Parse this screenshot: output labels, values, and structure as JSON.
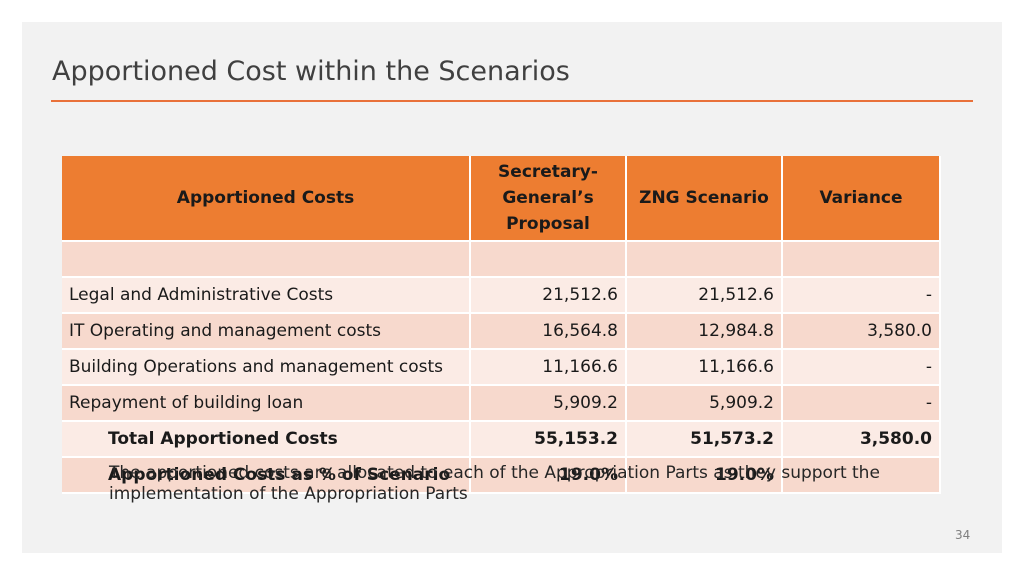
{
  "slide": {
    "title": "Apportioned Cost within the Scenarios",
    "page_number": "34",
    "note": "The apportioned costs are allocated to each of the Appropriation Parts as they support the implementation of the Appropriation Parts",
    "accent_color": "#ed7d31"
  },
  "table": {
    "headers": [
      "Apportioned Costs",
      "Secretary-General’s Proposal",
      "ZNG Scenario",
      "Variance"
    ],
    "rows": [
      [
        "",
        "",
        "",
        ""
      ],
      [
        "Legal and Administrative Costs",
        "21,512.6",
        "21,512.6",
        "-"
      ],
      [
        "IT Operating and management costs",
        "16,564.8",
        "12,984.8",
        "3,580.0"
      ],
      [
        "Building Operations and management costs",
        "11,166.6",
        "11,166.6",
        "-"
      ],
      [
        "Repayment of building loan",
        "5,909.2",
        "5,909.2",
        "-"
      ],
      [
        "Total Apportioned Costs",
        "55,153.2",
        "51,573.2",
        "3,580.0"
      ],
      [
        "Apportioned Costs as % of Scenario",
        "19.0%",
        "19.0%",
        ""
      ]
    ]
  }
}
